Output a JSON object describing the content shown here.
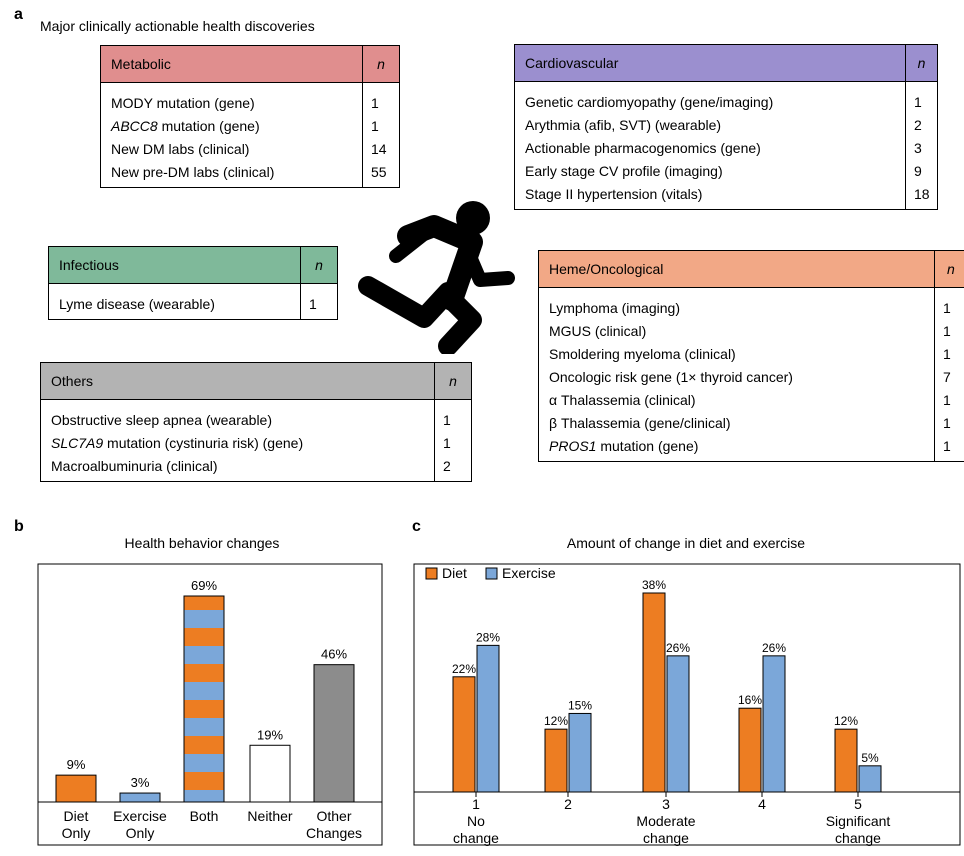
{
  "panel_a": {
    "letter": "a",
    "title": "Major clinically actionable health discoveries",
    "n_label": "n",
    "tables": {
      "metabolic": {
        "header": "Metabolic",
        "color": "#e08e8e",
        "rows": [
          {
            "label": "MODY mutation (gene)",
            "n": "1"
          },
          {
            "label": "ABCC8 mutation (gene)",
            "n": "1"
          },
          {
            "label": "New DM labs (clinical)",
            "n": "14"
          },
          {
            "label": "New pre-DM labs (clinical)",
            "n": "55"
          }
        ]
      },
      "cardiovascular": {
        "header": "Cardiovascular",
        "color": "#9b8fcf",
        "rows": [
          {
            "label": "Genetic cardiomyopathy (gene/imaging)",
            "n": "1"
          },
          {
            "label": "Arythmia (afib, SVT) (wearable)",
            "n": "2"
          },
          {
            "label": "Actionable pharmacogenomics (gene)",
            "n": "3"
          },
          {
            "label": "Early stage CV profile (imaging)",
            "n": "9"
          },
          {
            "label": "Stage II hypertension (vitals)",
            "n": "18"
          }
        ]
      },
      "infectious": {
        "header": "Infectious",
        "color": "#7fb99a",
        "rows": [
          {
            "label": "Lyme disease (wearable)",
            "n": "1"
          }
        ]
      },
      "heme": {
        "header": "Heme/Oncological",
        "color": "#f2a886",
        "rows": [
          {
            "label": "Lymphoma (imaging)",
            "n": "1"
          },
          {
            "label": "MGUS (clinical)",
            "n": "1"
          },
          {
            "label": "Smoldering myeloma (clinical)",
            "n": "1"
          },
          {
            "label": "Oncologic risk gene (1× thyroid cancer)",
            "n": "7"
          },
          {
            "label": "α Thalassemia (clinical)",
            "n": "1"
          },
          {
            "label": "β Thalassemia (gene/clinical)",
            "n": "1"
          },
          {
            "label": "PROS1 mutation (gene)",
            "n": "1"
          }
        ]
      },
      "others": {
        "header": "Others",
        "color": "#b3b3b3",
        "rows": [
          {
            "label": "Obstructive sleep apnea (wearable)",
            "n": "1"
          },
          {
            "label": "SLC7A9 mutation (cystinuria risk) (gene)",
            "n": "1"
          },
          {
            "label": "Macroalbuminuria (clinical)",
            "n": "2"
          }
        ]
      }
    },
    "icon": "running-person-icon"
  },
  "chart_data": [
    {
      "type": "bar",
      "panel": "b",
      "title": "Health behavior changes",
      "categories": [
        "Diet\nOnly",
        "Exercise\nOnly",
        "Both",
        "Neither",
        "Other\nChanges"
      ],
      "values": [
        9,
        3,
        69,
        19,
        46
      ],
      "value_labels": [
        "9%",
        "3%",
        "69%",
        "19%",
        "46%"
      ],
      "bar_styles": [
        "diet",
        "exercise",
        "diet+exercise striped",
        "none",
        "other"
      ],
      "colors": {
        "diet": "#ed7d22",
        "exercise": "#7ba7d9",
        "none": "#ffffff",
        "other": "#8c8c8c"
      },
      "ylim": [
        0,
        100
      ]
    },
    {
      "type": "bar",
      "panel": "c",
      "title": "Amount of change in diet and exercise",
      "categories": [
        "1\nNo\nchange",
        "2",
        "3\nModerate\nchange",
        "4",
        "5\nSignificant\nchange"
      ],
      "series": [
        {
          "name": "Diet",
          "values": [
            22,
            12,
            38,
            16,
            12
          ],
          "labels": [
            "22%",
            "12%",
            "38%",
            "16%",
            "12%"
          ],
          "color": "#ed7d22"
        },
        {
          "name": "Exercise",
          "values": [
            28,
            15,
            26,
            26,
            5
          ],
          "labels": [
            "28%",
            "15%",
            "26%",
            "26%",
            "5%"
          ],
          "color": "#7ba7d9"
        }
      ],
      "legend": "top-left",
      "ylim": [
        0,
        45
      ]
    }
  ]
}
